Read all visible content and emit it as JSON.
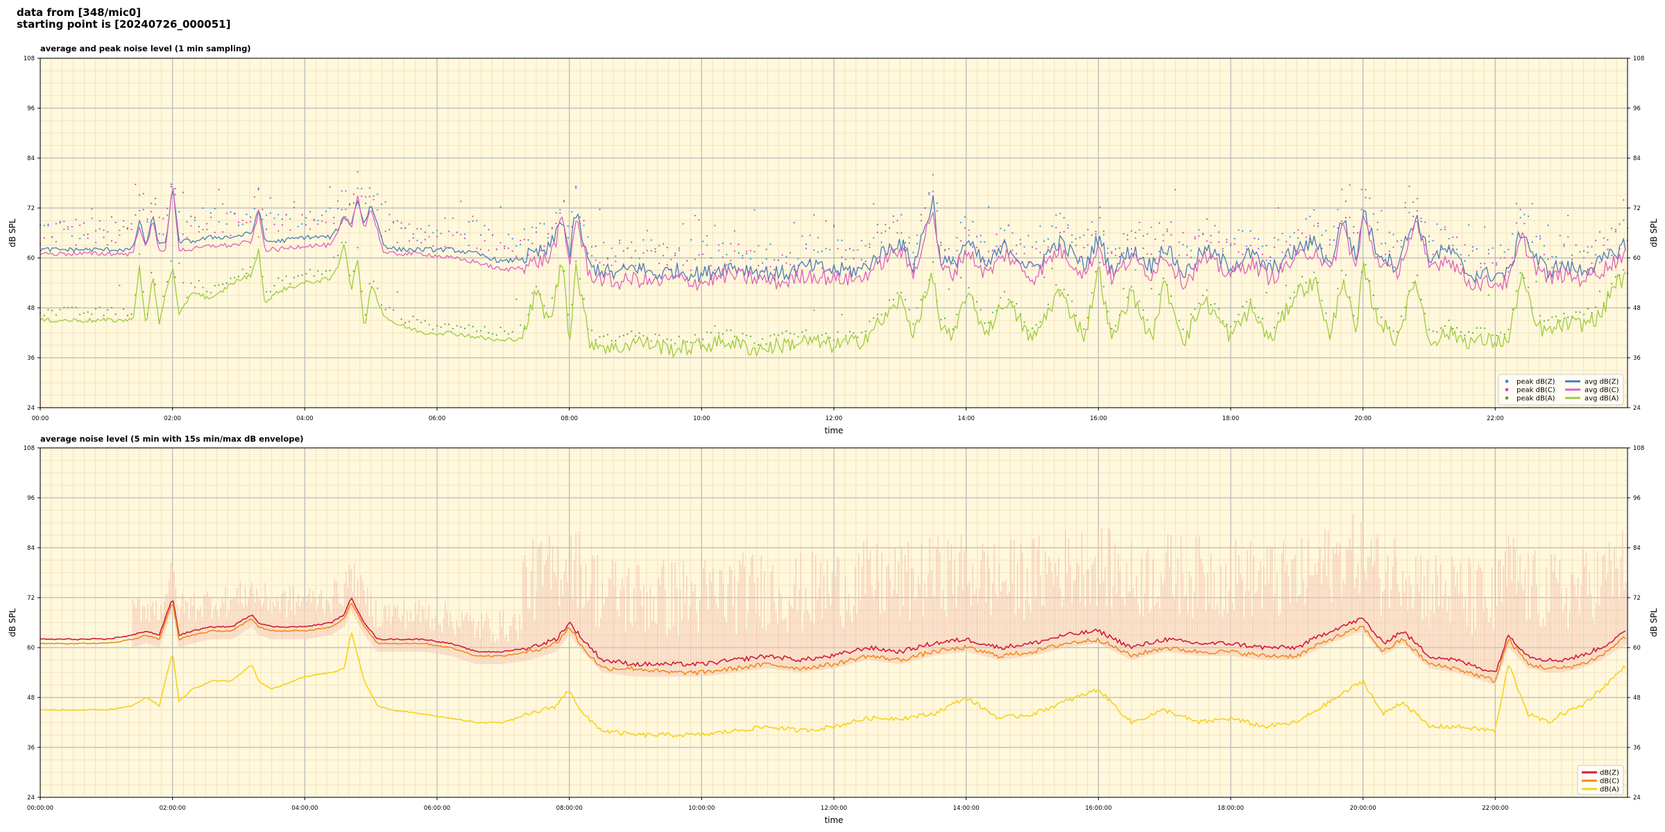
{
  "header": {
    "line1": "data from [348/mic0]",
    "line2": "starting point is [20240726_000051]"
  },
  "chart_data": [
    {
      "type": "line",
      "title": "average and peak noise level (1 min sampling)",
      "xlabel": "time",
      "ylabel": "dB SPL",
      "ylim": [
        24,
        108
      ],
      "yticks": [
        24,
        36,
        48,
        60,
        72,
        84,
        96,
        108
      ],
      "xlim_hours": [
        0,
        24
      ],
      "xtick_labels": [
        "00:00",
        "02:00",
        "04:00",
        "06:00",
        "08:00",
        "10:00",
        "12:00",
        "14:00",
        "16:00",
        "18:00",
        "20:00",
        "22:00"
      ],
      "grid": true,
      "legend": "bottom-right",
      "x_hours": [
        0,
        0.5,
        1,
        1.4,
        1.5,
        1.6,
        1.7,
        1.8,
        1.9,
        2.0,
        2.1,
        2.3,
        2.6,
        2.9,
        3.2,
        3.3,
        3.4,
        3.6,
        4.0,
        4.4,
        4.5,
        4.6,
        4.7,
        4.8,
        4.9,
        5.0,
        5.2,
        5.4,
        5.8,
        6.2,
        6.6,
        7.0,
        7.3,
        7.5,
        7.7,
        7.9,
        8.0,
        8.1,
        8.3,
        8.5,
        8.7,
        9.0,
        9.3,
        9.6,
        10.0,
        10.4,
        10.8,
        11.2,
        11.6,
        12.0,
        12.4,
        12.8,
        13.0,
        13.2,
        13.5,
        13.6,
        13.8,
        14.0,
        14.3,
        14.6,
        15.0,
        15.4,
        15.8,
        16.0,
        16.2,
        16.5,
        16.8,
        17.0,
        17.3,
        17.6,
        18.0,
        18.3,
        18.6,
        19.0,
        19.3,
        19.5,
        19.7,
        19.9,
        20.0,
        20.2,
        20.5,
        20.8,
        21.0,
        21.3,
        21.6,
        22.0,
        22.2,
        22.4,
        22.6,
        22.8,
        23.0,
        23.3,
        23.6,
        23.8,
        24.0
      ],
      "series": [
        {
          "name": "avg dB(Z)",
          "color": "#4a7ab8",
          "values": [
            62,
            62,
            62,
            62,
            69,
            63,
            70,
            63,
            64,
            77,
            64,
            64,
            65,
            65,
            66,
            72,
            64,
            64,
            65,
            65,
            67,
            70,
            68,
            74,
            68,
            73,
            63,
            62,
            62,
            62,
            61,
            59,
            60,
            61,
            62,
            70,
            60,
            71,
            58,
            57,
            56,
            58,
            56,
            57,
            56,
            58,
            57,
            56,
            58,
            57,
            57,
            62,
            64,
            58,
            74,
            60,
            58,
            64,
            58,
            63,
            57,
            64,
            58,
            65,
            57,
            62,
            58,
            63,
            56,
            62,
            58,
            61,
            57,
            62,
            64,
            58,
            70,
            59,
            72,
            62,
            58,
            70,
            60,
            62,
            56,
            56,
            56,
            67,
            60,
            57,
            58,
            57,
            59,
            61,
            64
          ]
        },
        {
          "name": "avg dB(C)",
          "color": "#e060c0",
          "values": [
            61,
            61,
            61,
            61,
            68,
            62,
            69,
            62,
            62,
            78,
            62,
            62,
            63,
            63,
            64,
            71,
            62,
            62,
            63,
            63,
            66,
            70,
            67,
            75,
            67,
            72,
            61,
            61,
            61,
            60,
            59,
            57,
            58,
            59,
            60,
            69,
            58,
            70,
            56,
            55,
            54,
            55,
            54,
            55,
            54,
            56,
            55,
            54,
            56,
            55,
            55,
            60,
            62,
            56,
            72,
            58,
            56,
            62,
            56,
            61,
            55,
            62,
            56,
            63,
            55,
            60,
            56,
            61,
            54,
            60,
            56,
            59,
            55,
            60,
            62,
            56,
            68,
            57,
            70,
            60,
            56,
            68,
            58,
            60,
            54,
            54,
            54,
            65,
            58,
            55,
            56,
            55,
            57,
            59,
            62
          ]
        },
        {
          "name": "avg dB(A)",
          "color": "#9ecb3c",
          "values": [
            45,
            45,
            45,
            45,
            58,
            43,
            56,
            44,
            52,
            58,
            46,
            52,
            50,
            54,
            56,
            62,
            49,
            52,
            54,
            55,
            58,
            64,
            52,
            60,
            42,
            54,
            46,
            44,
            42,
            42,
            41,
            40,
            41,
            52,
            44,
            60,
            40,
            58,
            40,
            39,
            38,
            40,
            39,
            38,
            39,
            40,
            38,
            39,
            40,
            39,
            40,
            46,
            50,
            42,
            56,
            44,
            40,
            52,
            42,
            50,
            40,
            52,
            41,
            58,
            40,
            52,
            40,
            54,
            40,
            50,
            41,
            48,
            40,
            52,
            54,
            40,
            56,
            41,
            58,
            46,
            40,
            55,
            40,
            42,
            40,
            40,
            40,
            56,
            44,
            42,
            44,
            44,
            46,
            54,
            55
          ]
        }
      ],
      "legend_entries": [
        "peak dB(Z)",
        "peak dB(C)",
        "peak dB(A)",
        "avg dB(Z)",
        "avg dB(C)",
        "avg dB(A)"
      ],
      "peak_series": [
        {
          "name": "peak dB(Z)",
          "color": "#3b8fd9",
          "offset_from_avg": 5
        },
        {
          "name": "peak dB(C)",
          "color": "#e040c8",
          "offset_from_avg": 5
        },
        {
          "name": "peak dB(A)",
          "color": "#5aa832",
          "offset_from_avg": 2
        }
      ],
      "legend_swatch": {
        "peak dB(Z)": "#3b8fd9",
        "peak dB(C)": "#e040c8",
        "peak dB(A)": "#5aa832"
      }
    },
    {
      "type": "line",
      "title": "average noise level (5 min with 15s min/max dB envelope)",
      "xlabel": "time",
      "ylabel": "dB SPL",
      "ylim": [
        24,
        108
      ],
      "yticks": [
        24,
        36,
        48,
        60,
        72,
        84,
        96,
        108
      ],
      "xlim_hours": [
        0,
        24
      ],
      "xtick_labels": [
        "00:00:00",
        "02:00:00",
        "04:00:00",
        "06:00:00",
        "08:00:00",
        "10:00:00",
        "12:00:00",
        "14:00:00",
        "16:00:00",
        "18:00:00",
        "20:00:00",
        "22:00:00"
      ],
      "grid": true,
      "legend": "bottom-right",
      "envelope_color": "#f4c0b0",
      "x_hours": [
        0,
        0.5,
        1,
        1.4,
        1.6,
        1.8,
        2.0,
        2.1,
        2.3,
        2.6,
        2.9,
        3.2,
        3.3,
        3.5,
        4.0,
        4.4,
        4.6,
        4.7,
        4.9,
        5.1,
        5.3,
        5.8,
        6.2,
        6.6,
        7.0,
        7.4,
        7.8,
        8.0,
        8.2,
        8.5,
        9.0,
        9.5,
        10.0,
        10.5,
        11.0,
        11.5,
        12.0,
        12.5,
        13.0,
        13.5,
        14.0,
        14.5,
        15.0,
        15.5,
        16.0,
        16.5,
        17.0,
        17.5,
        18.0,
        18.5,
        19.0,
        19.5,
        20.0,
        20.3,
        20.6,
        21.0,
        21.4,
        22.0,
        22.2,
        22.5,
        22.8,
        23.0,
        23.3,
        23.6,
        24.0
      ],
      "series": [
        {
          "name": "dB(Z)",
          "color": "#d01a3a",
          "values": [
            62,
            62,
            62,
            63,
            64,
            63,
            72,
            63,
            64,
            65,
            65,
            68,
            66,
            65,
            65,
            66,
            68,
            72,
            66,
            62,
            62,
            62,
            61,
            59,
            59,
            60,
            62,
            66,
            62,
            57,
            56,
            56,
            56,
            57,
            58,
            57,
            58,
            60,
            59,
            61,
            62,
            60,
            61,
            63,
            64,
            60,
            62,
            61,
            61,
            60,
            60,
            64,
            67,
            61,
            64,
            58,
            57,
            54,
            63,
            58,
            57,
            57,
            58,
            60,
            64
          ]
        },
        {
          "name": "dB(C)",
          "color": "#f08a1a",
          "values": [
            61,
            61,
            61,
            62,
            63,
            62,
            71,
            62,
            63,
            64,
            64,
            67,
            65,
            64,
            64,
            65,
            67,
            71,
            65,
            61,
            61,
            61,
            60,
            58,
            58,
            59,
            61,
            65,
            60,
            55,
            55,
            54,
            54,
            55,
            56,
            55,
            56,
            58,
            57,
            59,
            60,
            58,
            59,
            61,
            62,
            58,
            60,
            59,
            59,
            58,
            58,
            62,
            65,
            59,
            62,
            56,
            55,
            52,
            62,
            56,
            55,
            55,
            56,
            58,
            63
          ]
        },
        {
          "name": "dB(A)",
          "color": "#f5d21a",
          "values": [
            45,
            45,
            45,
            46,
            48,
            46,
            59,
            47,
            50,
            52,
            52,
            56,
            52,
            50,
            53,
            54,
            55,
            64,
            52,
            46,
            45,
            44,
            43,
            42,
            42,
            44,
            46,
            50,
            44,
            40,
            39,
            39,
            39,
            40,
            41,
            40,
            41,
            43,
            43,
            44,
            48,
            43,
            44,
            47,
            50,
            42,
            45,
            42,
            43,
            41,
            42,
            47,
            52,
            44,
            47,
            41,
            41,
            40,
            56,
            44,
            42,
            44,
            46,
            50,
            56
          ]
        }
      ],
      "legend_entries": [
        "dB(Z)",
        "dB(C)",
        "dB(A)"
      ]
    }
  ]
}
